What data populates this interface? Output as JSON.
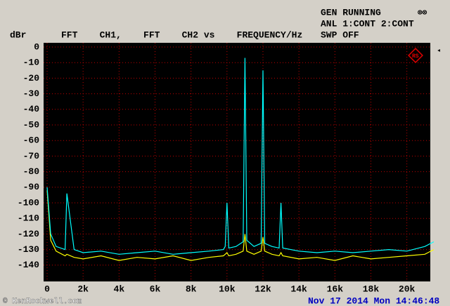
{
  "chart_data": {
    "type": "line",
    "title": "FFT    CH1,    FFT    CH2 vs    FREQUENCY/Hz",
    "y_label": "dBr",
    "status": [
      "GEN RUNNING",
      "ANL 1:CONT 2:CONT",
      "SWP OFF"
    ],
    "timestamp": "Nov 17 2014 Mon 14:46:48",
    "watermark": "© KenRockwell.com",
    "x": [
      0,
      200,
      500,
      1000,
      1100,
      1500,
      2000,
      3000,
      4000,
      5000,
      6000,
      7000,
      8000,
      9000,
      9800,
      9900,
      10000,
      10100,
      10500,
      10900,
      11000,
      11100,
      11500,
      11900,
      12000,
      12100,
      12500,
      12900,
      13000,
      13100,
      14000,
      15000,
      16000,
      17000,
      18000,
      19000,
      20000,
      21000,
      21500
    ],
    "series": [
      {
        "name": "CH1",
        "color": "#ffff00",
        "values": [
          -92,
          -124,
          -131,
          -134,
          -133,
          -135,
          -136,
          -134,
          -137,
          -135,
          -136,
          -134,
          -137,
          -135,
          -134,
          -133,
          -132,
          -134,
          -133,
          -131,
          -120,
          -131,
          -133,
          -131,
          -122,
          -131,
          -133,
          -134,
          -132,
          -134,
          -136,
          -135,
          -137,
          -134,
          -136,
          -135,
          -134,
          -133,
          -130
        ]
      },
      {
        "name": "CH2",
        "color": "#00ffff",
        "values": [
          -90,
          -120,
          -128,
          -130,
          -94,
          -130,
          -132,
          -131,
          -133,
          -132,
          -131,
          -133,
          -132,
          -131,
          -130,
          -128,
          -100,
          -129,
          -128,
          -125,
          -7,
          -124,
          -128,
          -126,
          -15,
          -126,
          -128,
          -129,
          -100,
          -129,
          -131,
          -132,
          -131,
          -132,
          -131,
          -130,
          -131,
          -128,
          -125
        ]
      }
    ],
    "xlim": [
      0,
      21500
    ],
    "ylim": [
      -150,
      0
    ],
    "xticks": [
      0,
      {
        "value": 2000,
        "label": "2k"
      },
      {
        "value": 4000,
        "label": "4k"
      },
      {
        "value": 6000,
        "label": "6k"
      },
      {
        "value": 8000,
        "label": "8k"
      },
      {
        "value": 10000,
        "label": "10k"
      },
      {
        "value": 12000,
        "label": "12k"
      },
      {
        "value": 14000,
        "label": "14k"
      },
      {
        "value": 16000,
        "label": "16k"
      },
      {
        "value": 18000,
        "label": "18k"
      },
      {
        "value": 20000,
        "label": "20k"
      }
    ],
    "yticks": [
      0,
      -10,
      -20,
      -30,
      -40,
      -50,
      -60,
      -70,
      -80,
      -90,
      -100,
      -110,
      -120,
      -130,
      -140
    ],
    "grid": true,
    "grid_color": "#c00000"
  }
}
